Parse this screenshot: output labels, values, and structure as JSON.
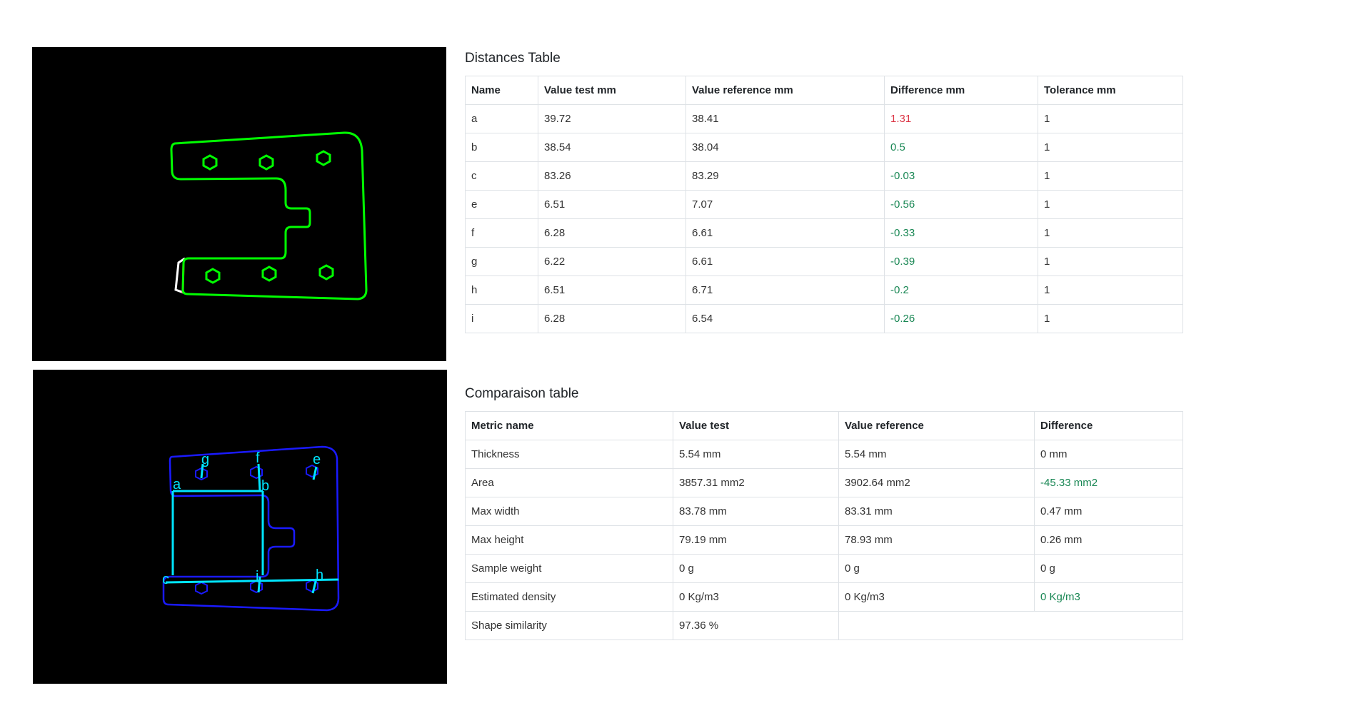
{
  "colors": {
    "contour_test": "#00ff00",
    "distance_bad": "#ff0000",
    "contour_ref": "#ffffff",
    "contour_blue": "#1a1aff",
    "measure_cyan": "#00e5ff",
    "diff_bad": "#dc3545",
    "diff_good": "#198754"
  },
  "overlay_labels": [
    "g",
    "f",
    "e",
    "a",
    "b",
    "c",
    "i",
    "h"
  ],
  "distances": {
    "title": "Distances Table",
    "headers": [
      "Name",
      "Value test mm",
      "Value reference mm",
      "Difference mm",
      "Tolerance mm"
    ],
    "rows": [
      {
        "name": "a",
        "test": "39.72",
        "reference": "38.41",
        "difference": "1.31",
        "tolerance": "1",
        "status": "bad"
      },
      {
        "name": "b",
        "test": "38.54",
        "reference": "38.04",
        "difference": "0.5",
        "tolerance": "1",
        "status": "good"
      },
      {
        "name": "c",
        "test": "83.26",
        "reference": "83.29",
        "difference": "-0.03",
        "tolerance": "1",
        "status": "good"
      },
      {
        "name": "e",
        "test": "6.51",
        "reference": "7.07",
        "difference": "-0.56",
        "tolerance": "1",
        "status": "good"
      },
      {
        "name": "f",
        "test": "6.28",
        "reference": "6.61",
        "difference": "-0.33",
        "tolerance": "1",
        "status": "good"
      },
      {
        "name": "g",
        "test": "6.22",
        "reference": "6.61",
        "difference": "-0.39",
        "tolerance": "1",
        "status": "good"
      },
      {
        "name": "h",
        "test": "6.51",
        "reference": "6.71",
        "difference": "-0.2",
        "tolerance": "1",
        "status": "good"
      },
      {
        "name": "i",
        "test": "6.28",
        "reference": "6.54",
        "difference": "-0.26",
        "tolerance": "1",
        "status": "good"
      }
    ]
  },
  "comparison": {
    "title": "Comparaison table",
    "headers": [
      "Metric name",
      "Value test",
      "Value reference",
      "Difference"
    ],
    "rows": [
      {
        "metric": "Thickness",
        "test": "5.54 mm",
        "reference": "5.54 mm",
        "difference": "0 mm",
        "status": "neutral"
      },
      {
        "metric": "Area",
        "test": "3857.31 mm2",
        "reference": "3902.64 mm2",
        "difference": "-45.33 mm2",
        "status": "good"
      },
      {
        "metric": "Max width",
        "test": "83.78 mm",
        "reference": "83.31 mm",
        "difference": "0.47 mm",
        "status": "neutral"
      },
      {
        "metric": "Max height",
        "test": "79.19 mm",
        "reference": "78.93 mm",
        "difference": "0.26 mm",
        "status": "neutral"
      },
      {
        "metric": "Sample weight",
        "test": "0 g",
        "reference": "0 g",
        "difference": "0 g",
        "status": "neutral"
      },
      {
        "metric": "Estimated density",
        "test": "0 Kg/m3",
        "reference": "0 Kg/m3",
        "difference": "0 Kg/m3",
        "status": "good"
      },
      {
        "metric": "Shape similarity",
        "test": "97.36 %",
        "reference": "",
        "difference": "",
        "status": "neutral",
        "merged": true
      }
    ]
  }
}
